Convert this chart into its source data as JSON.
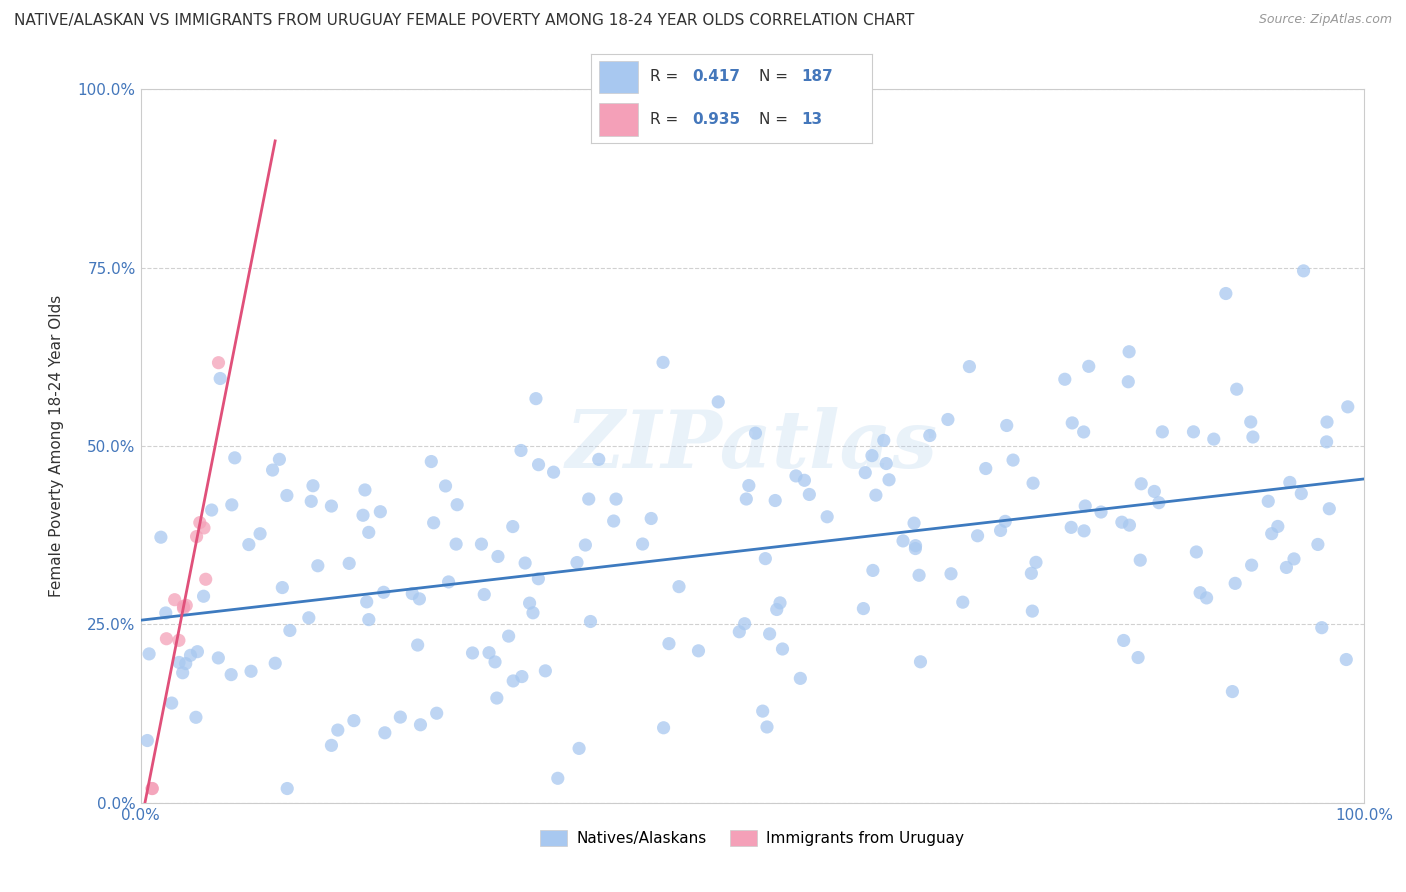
{
  "title": "NATIVE/ALASKAN VS IMMIGRANTS FROM URUGUAY FEMALE POVERTY AMONG 18-24 YEAR OLDS CORRELATION CHART",
  "source": "Source: ZipAtlas.com",
  "ylabel": "Female Poverty Among 18-24 Year Olds",
  "xlim": [
    0,
    1
  ],
  "ylim": [
    0,
    1
  ],
  "xtick_labels": [
    "0.0%",
    "100.0%"
  ],
  "ytick_labels": [
    "0.0%",
    "25.0%",
    "50.0%",
    "75.0%",
    "100.0%"
  ],
  "ytick_positions": [
    0.0,
    0.25,
    0.5,
    0.75,
    1.0
  ],
  "blue_R": 0.417,
  "blue_N": 187,
  "pink_R": 0.935,
  "pink_N": 13,
  "blue_color": "#a8c8f0",
  "pink_color": "#f4a0b8",
  "blue_line_color": "#3d7abf",
  "pink_line_color": "#e0507a",
  "text_color": "#4477bb",
  "label_color": "#333333",
  "background_color": "#ffffff",
  "grid_color": "#cccccc",
  "watermark": "ZIPatlas"
}
